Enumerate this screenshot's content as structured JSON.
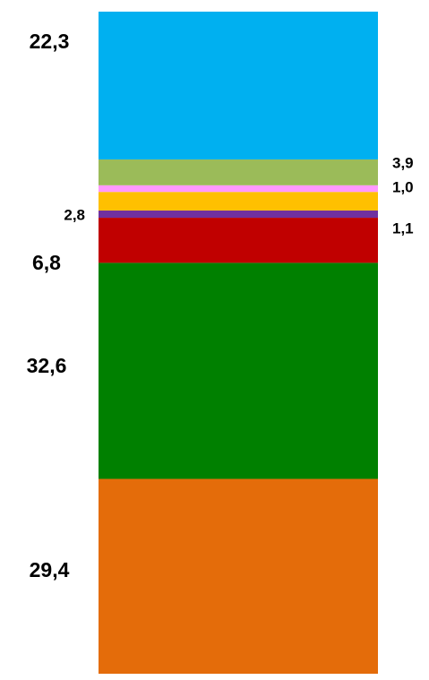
{
  "chart_data": {
    "type": "stacked_bar",
    "values": [
      29.4,
      32.6,
      6.8,
      1.1,
      2.8,
      1.0,
      3.9,
      22.3
    ],
    "value_labels": [
      "29,4",
      "32,6",
      "6,8",
      "1,1",
      "2,8",
      "1,0",
      "3,9",
      "22,3"
    ],
    "colors": [
      "#e46c0a",
      "#008000",
      "#c00000",
      "#7030a0",
      "#ffc000",
      "#ff99ff",
      "#9bbb59",
      "#00b0f0"
    ]
  }
}
